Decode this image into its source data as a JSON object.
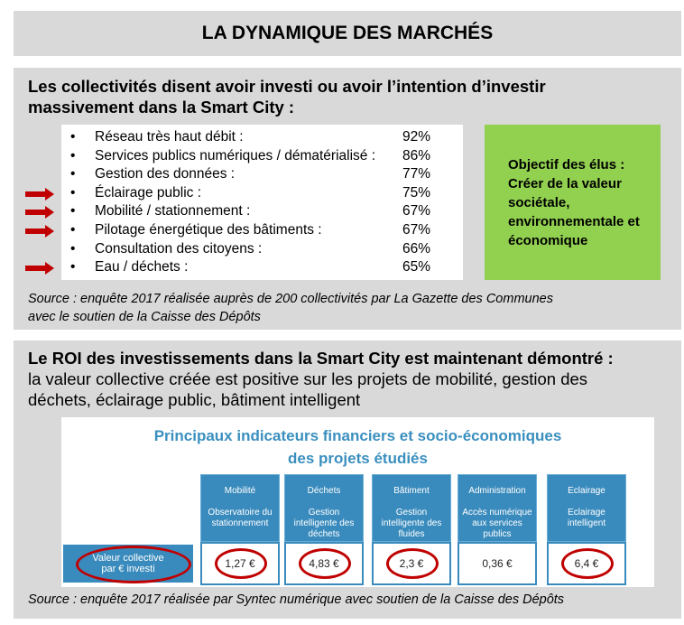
{
  "title": "LA DYNAMIQUE DES MARCHÉS",
  "section1": {
    "heading_line1": "Les collectivités disent avoir investi ou avoir l’intention d’investir",
    "heading_line2": "massivement dans la Smart City :",
    "items": [
      {
        "label": "Réseau très haut débit :",
        "pct": "92%",
        "arrow": false
      },
      {
        "label": "Services publics numériques / dématérialisé :",
        "pct": "86%",
        "arrow": false
      },
      {
        "label": "Gestion des données :",
        "pct": "77%",
        "arrow": false
      },
      {
        "label": "Éclairage public :",
        "pct": "75%",
        "arrow": true
      },
      {
        "label": "Mobilité / stationnement :",
        "pct": "67%",
        "arrow": true
      },
      {
        "label": "Pilotage énergétique des bâtiments :",
        "pct": "67%",
        "arrow": true
      },
      {
        "label": "Consultation des citoyens :",
        "pct": "66%",
        "arrow": false
      },
      {
        "label": "Eau / déchets :",
        "pct": "65%",
        "arrow": true
      }
    ],
    "bullet": "•",
    "objective": [
      "Objectif des élus :",
      "Créer de la valeur",
      "sociétale,",
      "environnementale et",
      "économique"
    ],
    "source_line1": "Source : enquête 2017 réalisée auprès de 200 collectivités par La Gazette des Communes",
    "source_line2": "avec le soutien de la Caisse des Dépôts"
  },
  "section2": {
    "heading_bold": "Le ROI des investissements dans la Smart City est maintenant démontré :",
    "text_line1": "la valeur collective créée est positive sur les projets de mobilité, gestion des",
    "text_line2": "déchets, éclairage public, bâtiment intelligent",
    "infographic": {
      "title_line1": "Principaux indicateurs financiers et socio-économiques",
      "title_line2": "des projets étudiés",
      "row_label": "Valeur collective par € investi",
      "columns": [
        {
          "category": "Mobilité",
          "project": "Observatoire du stationnement",
          "value": "1,27 €",
          "circled": true
        },
        {
          "category": "Déchets",
          "project": "Gestion intelligente des déchets",
          "value": "4,83 €",
          "circled": true
        },
        {
          "category": "Bâtiment",
          "project": "Gestion intelligente des fluides",
          "value": "2,3 €",
          "circled": true
        },
        {
          "category": "Administration",
          "project": "Accès numérique aux services publics",
          "value": "0,36 €",
          "circled": false
        },
        {
          "category": "Eclairage",
          "project": "Eclairage intelligent",
          "value": "6,4 €",
          "circled": true
        }
      ]
    },
    "source": "Source : enquête 2017 réalisée par Syntec numérique avec soutien de la Caisse des Dépôts"
  },
  "colors": {
    "panel": "#d9d9d9",
    "green": "#92d050",
    "blue": "#3a8bbd",
    "red": "#c00000"
  }
}
